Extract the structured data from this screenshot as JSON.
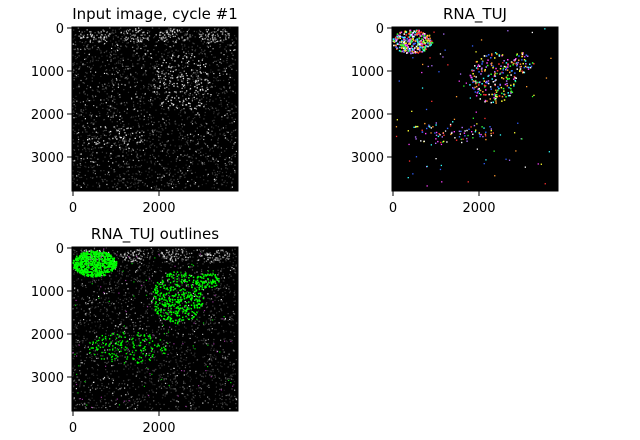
{
  "figure": {
    "background": "#ffffff",
    "panels": [
      {
        "id": "input",
        "title": "Input image, cycle #1",
        "style": "grayscale",
        "colors": {
          "background": "#000000",
          "foreground": "#ffffff"
        },
        "y_ticks": [
          "0",
          "1000",
          "2000",
          "3000"
        ],
        "x_ticks": [
          "0",
          "2000"
        ]
      },
      {
        "id": "rna",
        "title": "RNA_TUJ",
        "style": "labels",
        "colors": {
          "background": "#000000",
          "palette": [
            "#ff3030",
            "#30ff30",
            "#3060ff",
            "#ffff30",
            "#ff40ff",
            "#30ffff",
            "#ff9a30",
            "#ffffff",
            "#b070ff"
          ]
        },
        "y_ticks": [
          "0",
          "1000",
          "2000",
          "3000"
        ],
        "x_ticks": [
          "0",
          "2000"
        ]
      },
      {
        "id": "outlines",
        "title": "RNA_TUJ outlines",
        "style": "overlay",
        "colors": {
          "background": "#000000",
          "outline": "#00ff00",
          "secondary": "#c040c0"
        },
        "y_ticks": [
          "0",
          "1000",
          "2000",
          "3000"
        ],
        "x_ticks": [
          "0",
          "2000"
        ]
      }
    ]
  }
}
